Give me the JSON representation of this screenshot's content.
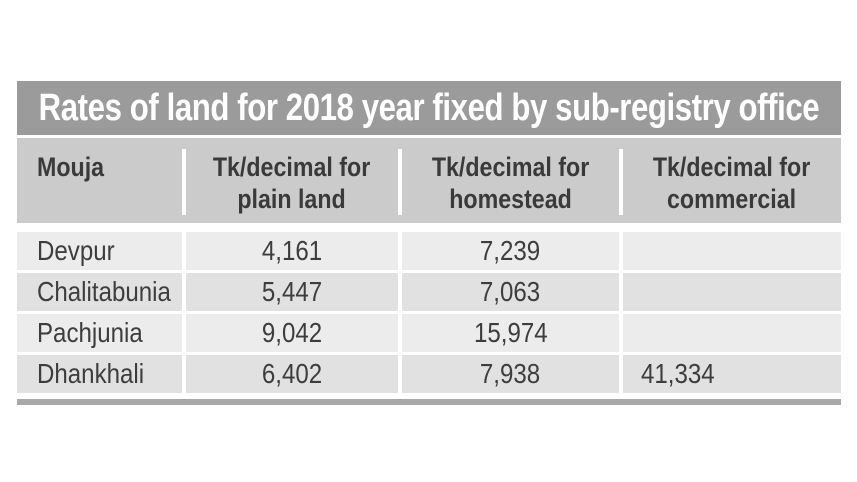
{
  "title": "Rates of land for 2018 year fixed by sub-registry office",
  "header": {
    "mouja": "Mouja",
    "plain_line1": "Tk/decimal for",
    "plain_line2": "plain land",
    "homestead_line1": "Tk/decimal for",
    "homestead_line2": "homestead",
    "commercial_line1": "Tk/decimal for",
    "commercial_line2": "commercial"
  },
  "rows": [
    {
      "mouja": "Devpur",
      "plain_land": "4,161",
      "homestead": "7,239",
      "commercial": ""
    },
    {
      "mouja": "Chalitabunia",
      "plain_land": "5,447",
      "homestead": "7,063",
      "commercial": ""
    },
    {
      "mouja": "Pachjunia",
      "plain_land": "9,042",
      "homestead": "15,974",
      "commercial": ""
    },
    {
      "mouja": "Dhankhali",
      "plain_land": "6,402",
      "homestead": "7,938",
      "commercial": "41,334"
    }
  ],
  "colors": {
    "title_bar_bg": "#9b9b9b",
    "title_text": "#ffffff",
    "header_bg": "#cbcbcb",
    "row_light_bg": "#ececec",
    "row_dark_bg": "#e1e1e1",
    "text_dark": "#3d3d3d",
    "bottom_bar": "#a8a8a8",
    "page_bg": "#ffffff"
  }
}
